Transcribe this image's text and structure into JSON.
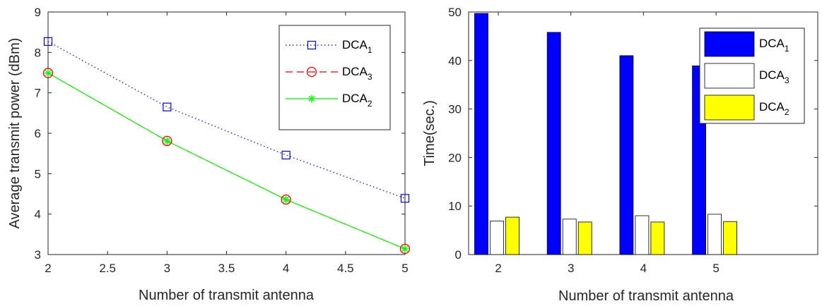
{
  "chart_data": [
    {
      "type": "line",
      "xlabel": "Number of transmit antenna",
      "ylabel": "Average transmit power (dBm)",
      "xlim": [
        2,
        5
      ],
      "ylim": [
        3,
        9
      ],
      "xticks": [
        "2",
        "2.5",
        "3",
        "3.5",
        "4",
        "4.5",
        "5"
      ],
      "yticks": [
        "3",
        "4",
        "5",
        "6",
        "7",
        "8",
        "9"
      ],
      "x": [
        2,
        3,
        4,
        5
      ],
      "legend_position": "top-right",
      "series": [
        {
          "name": "DCA",
          "sub": "1",
          "values": [
            8.27,
            6.65,
            5.46,
            4.39
          ],
          "color": "#0000ff",
          "marker": "square",
          "dash": "dotted"
        },
        {
          "name": "DCA",
          "sub": "3",
          "values": [
            7.49,
            5.81,
            4.36,
            3.14
          ],
          "color": "#ff0000",
          "marker": "circle",
          "dash": "dashed"
        },
        {
          "name": "DCA",
          "sub": "2",
          "values": [
            7.49,
            5.81,
            4.36,
            3.14
          ],
          "color": "#00ff00",
          "marker": "asterisk",
          "dash": "solid"
        }
      ]
    },
    {
      "type": "bar",
      "xlabel": "Number of transmit antenna",
      "ylabel": "Time(sec.)",
      "categories": [
        "2",
        "3",
        "4",
        "5"
      ],
      "ylim": [
        0,
        50
      ],
      "yticks": [
        "0",
        "10",
        "20",
        "30",
        "40",
        "50"
      ],
      "legend_position": "top-right",
      "series": [
        {
          "name": "DCA",
          "sub": "1",
          "values": [
            49.7,
            45.8,
            41.0,
            38.9
          ],
          "color": "#0000ff"
        },
        {
          "name": "DCA",
          "sub": "3",
          "values": [
            6.9,
            7.3,
            8.0,
            8.3
          ],
          "color": "#ffffff"
        },
        {
          "name": "DCA",
          "sub": "2",
          "values": [
            7.7,
            6.7,
            6.7,
            6.8
          ],
          "color": "#ffff00"
        }
      ]
    }
  ]
}
